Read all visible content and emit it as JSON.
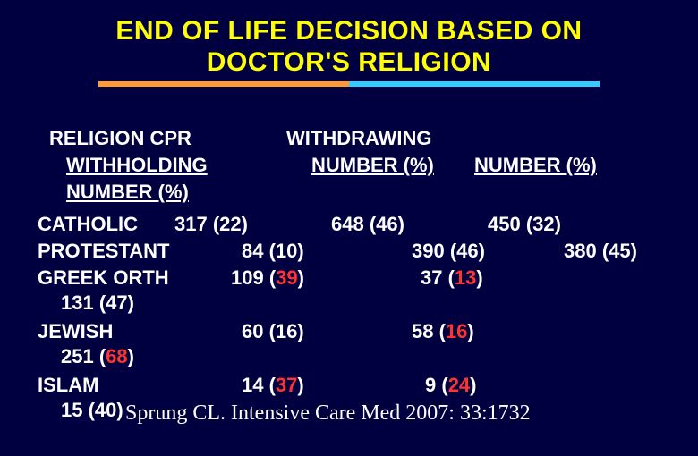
{
  "title": {
    "line1": "END OF LIFE  DECISION BASED ON",
    "line2": "DOCTOR'S RELIGION"
  },
  "colors": {
    "background": "#000040",
    "title": "#ffff00",
    "text": "#ffffff",
    "highlight": "#ff3333",
    "bar_left": "#ff9933",
    "bar_right": "#33ccff"
  },
  "headers": {
    "col0_line1": "RELIGION  CPR",
    "col0_line2": "WITHHOLDING",
    "col0_line3": "NUMBER (%)",
    "col1_line1": "WITHDRAWING",
    "col1_line2": "NUMBER (%)",
    "col2_line2": "NUMBER (%)"
  },
  "rows": {
    "catholic": {
      "label": "CATHOLIC",
      "c1": "317 (22)",
      "c2": "648 (46)",
      "c3": "450 (32)"
    },
    "protestant": {
      "label": "PROTESTANT",
      "c1": "84 (10)",
      "c2": "390 (46)",
      "c3": "380 (45)"
    },
    "greek": {
      "label": "GREEK ORTH",
      "c1_pre": "109 (",
      "c1_hl": "39",
      "c1_post": ")",
      "c2_pre": "37 (",
      "c2_hl": "13",
      "c2_post": ")",
      "wrap": "131 (47)"
    },
    "jewish": {
      "label": "JEWISH",
      "c1": "60 (16)",
      "c2_pre": "58 (",
      "c2_hl": "16",
      "c2_post": ")",
      "wrap_pre": "251 (",
      "wrap_hl": "68",
      "wrap_post": ")"
    },
    "islam": {
      "label": "ISLAM",
      "c1_pre": "14 (",
      "c1_hl": "37",
      "c1_post": ")",
      "c2_pre": "9 (",
      "c2_hl": "24",
      "c2_post": ")",
      "wrap": "15 (40)"
    }
  },
  "citation": "Sprung CL. Intensive Care Med 2007: 33:1732"
}
